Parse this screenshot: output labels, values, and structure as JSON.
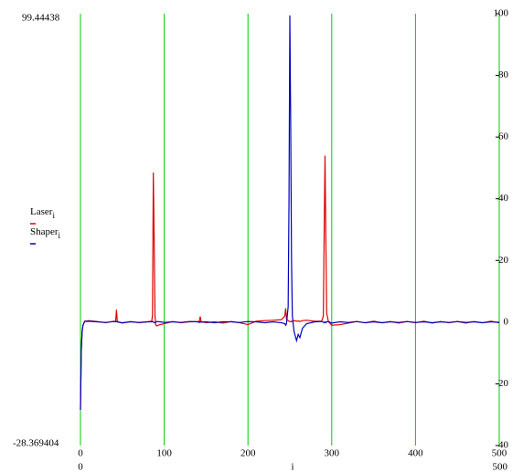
{
  "chart_data": {
    "type": "line",
    "xlabel": "i",
    "x": [
      0,
      1,
      2,
      3,
      5,
      10,
      20,
      30,
      40,
      42,
      43,
      44,
      50,
      60,
      70,
      80,
      85,
      86,
      87,
      88,
      89,
      90,
      91,
      95,
      100,
      110,
      120,
      130,
      140,
      142,
      143,
      144,
      150,
      160,
      170,
      180,
      190,
      200,
      210,
      220,
      230,
      240,
      244,
      245,
      246,
      248,
      249,
      250,
      251,
      252,
      253,
      255,
      258,
      260,
      262,
      265,
      270,
      280,
      288,
      290,
      291,
      292,
      293,
      294,
      296,
      300,
      310,
      320,
      330,
      340,
      350,
      360,
      370,
      380,
      390,
      400,
      410,
      420,
      430,
      440,
      450,
      460,
      470,
      480,
      490,
      500
    ],
    "series": [
      {
        "name": "Laser",
        "color": "#e00000",
        "values": [
          -28.4,
          -9,
          -3,
          -1,
          0.3,
          0.5,
          0.2,
          -0.2,
          0.3,
          0.2,
          4,
          0.1,
          -0.3,
          0.2,
          -0.2,
          0.1,
          0.3,
          2,
          48.5,
          27,
          2,
          -1,
          -1.2,
          -0.8,
          -0.5,
          0.2,
          -0.2,
          0.1,
          0.2,
          0.3,
          1.8,
          0.2,
          -0.2,
          0.1,
          -0.3,
          0.2,
          -0.2,
          -0.8,
          0.3,
          0.5,
          0.6,
          0.8,
          2,
          4.5,
          1,
          0.5,
          0.3,
          0.2,
          0.1,
          0.3,
          0.2,
          0.5,
          0.3,
          0.4,
          0.2,
          0.5,
          0.6,
          0.3,
          0.3,
          2,
          30,
          54,
          27,
          3,
          0.2,
          -1,
          -0.8,
          -0.3,
          0.2,
          -0.2,
          0.3,
          -0.2,
          0.2,
          -0.3,
          0.2,
          -0.2,
          0.3,
          -0.3,
          0.2,
          -0.2,
          0.2,
          -0.3,
          0.2,
          -0.2,
          0.3,
          -0.2
        ]
      },
      {
        "name": "Shaper",
        "color": "#0000c0",
        "values": [
          -28.4,
          -9,
          -3,
          -1,
          0.2,
          0.3,
          0.1,
          -0.1,
          0.2,
          0.1,
          0.2,
          0.1,
          -0.2,
          0.1,
          -0.1,
          0.1,
          0.1,
          0.2,
          0.1,
          -0.2,
          -0.1,
          0.1,
          0.2,
          0.1,
          -0.1,
          0.1,
          -0.1,
          0.2,
          0.1,
          -0.1,
          0.1,
          0,
          0.1,
          -0.2,
          0.1,
          0.1,
          -0.1,
          0.2,
          0.1,
          -0.2,
          0.1,
          -0.2,
          -0.5,
          -1,
          -0.5,
          5,
          40,
          99.44438,
          65,
          20,
          2,
          -3,
          -6,
          -4,
          -5,
          -2,
          -0.5,
          0.1,
          0.2,
          0,
          -0.2,
          0.1,
          -0.2,
          0.1,
          0.2,
          -0.3,
          0.1,
          -0.1,
          0.2,
          -0.2,
          0.1,
          -0.2,
          0.1,
          -0.1,
          0.2,
          -0.1,
          0.1,
          -0.2,
          0.1,
          -0.1,
          0.2,
          -0.1,
          0.1,
          -0.2,
          0.1,
          -0.1
        ]
      }
    ],
    "xlim": [
      0,
      500
    ],
    "xticks": [
      0,
      100,
      200,
      300,
      400,
      500
    ],
    "ylim": [
      -40,
      100
    ],
    "yticks": [
      100,
      80,
      60,
      40,
      20,
      0,
      -20,
      -40
    ],
    "grid_color": "#00cc00",
    "y_upper_marker": 99.44438,
    "y_lower_marker": -28.369404,
    "x_lower_marker": 0,
    "x_upper_marker": 500
  }
}
